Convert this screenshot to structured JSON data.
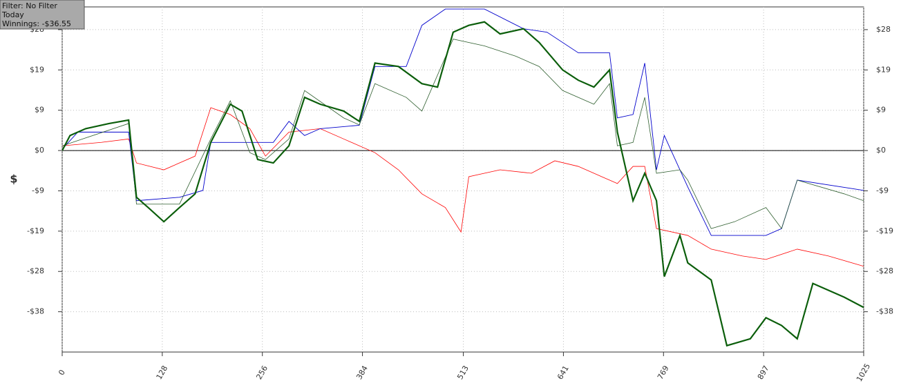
{
  "chart_data": {
    "type": "line",
    "annotations": [
      "Filter: No Filter",
      "Today",
      "Winnings: -$36.55"
    ],
    "ylabel": "$",
    "xlim": [
      0,
      1025
    ],
    "xticks": [
      0,
      128,
      256,
      384,
      513,
      641,
      769,
      897,
      1025
    ],
    "ylim": [
      -47,
      33.5
    ],
    "yticks": [
      {
        "value": 28.2,
        "label": "$28"
      },
      {
        "value": 18.8,
        "label": "$19"
      },
      {
        "value": 9.4,
        "label": "$9"
      },
      {
        "value": 0,
        "label": "$0"
      },
      {
        "value": -9.4,
        "label": "-$9"
      },
      {
        "value": -18.8,
        "label": "-$19"
      },
      {
        "value": -28.2,
        "label": "-$28"
      },
      {
        "value": -37.6,
        "label": "-$38"
      }
    ],
    "grid": true,
    "series": [
      {
        "color": "#ff0000",
        "width": 0.8,
        "x": [
          0,
          50,
          85,
          95,
          130,
          170,
          190,
          215,
          240,
          260,
          290,
          330,
          360,
          400,
          430,
          460,
          490,
          510,
          520,
          560,
          600,
          630,
          660,
          690,
          710,
          730,
          745,
          760,
          800,
          830,
          870,
          900,
          940,
          980,
          1025
        ],
        "values": [
          1.1,
          1.9,
          2.7,
          -2.9,
          -4.5,
          -1.3,
          10,
          8.4,
          5.1,
          -1.3,
          4.3,
          5.1,
          2.7,
          -0.5,
          -4.5,
          -10.1,
          -13.3,
          -19,
          -6.1,
          -4.5,
          -5.3,
          -2.4,
          -3.7,
          -6.1,
          -7.7,
          -3.7,
          -3.7,
          -18.2,
          -19.8,
          -23,
          -24.6,
          -25.4,
          -23,
          -24.6,
          -27
        ]
      },
      {
        "color": "#0000cc",
        "width": 0.9,
        "x": [
          0,
          20,
          85,
          95,
          150,
          180,
          190,
          240,
          270,
          290,
          310,
          330,
          380,
          400,
          440,
          460,
          490,
          540,
          590,
          620,
          660,
          700,
          710,
          730,
          745,
          760,
          770,
          790,
          800,
          830,
          900,
          920,
          940,
          1025
        ],
        "values": [
          0.3,
          4.3,
          4.3,
          -11.7,
          -10.9,
          -9.3,
          1.9,
          1.9,
          1.9,
          6.8,
          3.5,
          5.1,
          5.9,
          19.6,
          19.6,
          29.2,
          33,
          33,
          28.4,
          27.6,
          22.8,
          22.8,
          7.6,
          8.4,
          20.4,
          -4.5,
          3.5,
          -4.5,
          -8.5,
          -19.8,
          -19.8,
          -18.2,
          -6.9,
          -9.3
        ]
      },
      {
        "color": "#2e5e2e",
        "width": 0.8,
        "x": [
          0,
          85,
          95,
          150,
          190,
          215,
          240,
          260,
          290,
          310,
          360,
          380,
          400,
          440,
          460,
          500,
          540,
          580,
          610,
          640,
          680,
          700,
          710,
          730,
          745,
          760,
          790,
          800,
          830,
          860,
          900,
          920,
          940,
          1000,
          1025
        ],
        "values": [
          1.1,
          6.3,
          -12.5,
          -12.5,
          2.7,
          11.6,
          -0.5,
          -2.1,
          2.7,
          14,
          7.6,
          6,
          15.6,
          12.4,
          9.2,
          26,
          24.4,
          22,
          19.6,
          14,
          10.8,
          15.6,
          1.1,
          1.9,
          12.4,
          -5.3,
          -4.5,
          -6.9,
          -18.2,
          -16.6,
          -13.3,
          -18.2,
          -6.9,
          -10.1,
          -11.7
        ]
      },
      {
        "color": "#0b5e0b",
        "width": 2.2,
        "x": [
          0,
          10,
          30,
          60,
          85,
          95,
          110,
          130,
          150,
          170,
          190,
          215,
          230,
          250,
          270,
          290,
          310,
          330,
          360,
          380,
          400,
          430,
          460,
          480,
          500,
          520,
          540,
          560,
          590,
          610,
          640,
          660,
          680,
          700,
          710,
          730,
          745,
          760,
          770,
          790,
          800,
          830,
          850,
          880,
          900,
          920,
          940,
          960,
          1000,
          1025
        ],
        "values": [
          0,
          3.5,
          5.1,
          6.3,
          7.1,
          -10.9,
          -13.3,
          -16.6,
          -13.3,
          -10.1,
          1.9,
          10.8,
          9.2,
          -2.1,
          -2.9,
          1.1,
          12.4,
          10.8,
          9.2,
          6.8,
          20.4,
          19.6,
          15.6,
          14.8,
          27.6,
          29.2,
          30,
          27.2,
          28.4,
          25.2,
          18.8,
          16.4,
          14.8,
          18.8,
          4.3,
          -11.7,
          -5.3,
          -11.7,
          -29.4,
          -19.8,
          -26.2,
          -30.2,
          -45.5,
          -43.9,
          -39,
          -40.8,
          -43.9,
          -31,
          -34.2,
          -36.6
        ]
      }
    ]
  }
}
